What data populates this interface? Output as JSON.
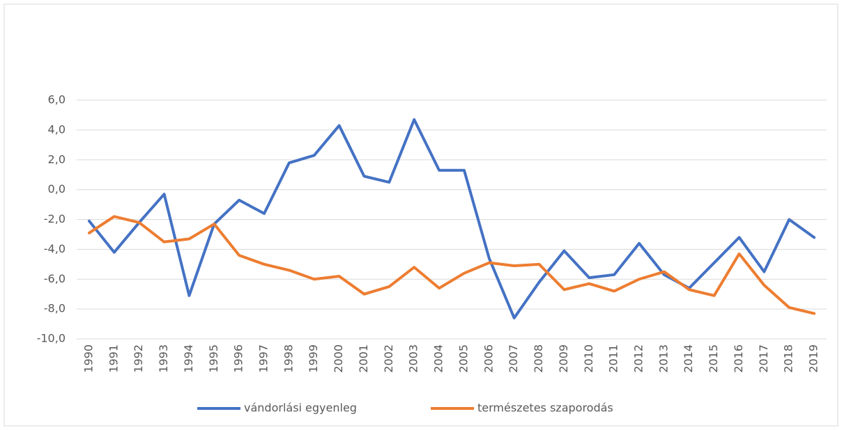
{
  "chart_data": {
    "type": "line",
    "categories": [
      "1990",
      "1991",
      "1992",
      "1993",
      "1994",
      "1995",
      "1996",
      "1997",
      "1998",
      "1999",
      "2000",
      "2001",
      "2002",
      "2003",
      "2004",
      "2005",
      "2006",
      "2007",
      "2008",
      "2009",
      "2010",
      "2011",
      "2012",
      "2013",
      "2014",
      "2015",
      "2016",
      "2017",
      "2018",
      "2019"
    ],
    "series": [
      {
        "name": "vándorlási egyenleg",
        "color": "#4472c4",
        "values": [
          -2.1,
          -4.2,
          -2.2,
          -0.3,
          -7.1,
          -2.3,
          -0.7,
          -1.6,
          1.8,
          2.3,
          4.3,
          0.9,
          0.5,
          4.7,
          1.3,
          1.3,
          -4.6,
          -8.6,
          -6.2,
          -4.1,
          -5.9,
          -5.7,
          -3.6,
          -5.7,
          -6.6,
          -4.9,
          -3.2,
          -5.5,
          -2.0,
          -3.2
        ]
      },
      {
        "name": "természetes szaporodás",
        "color": "#ed7d31",
        "values": [
          -2.9,
          -1.8,
          -2.2,
          -3.5,
          -3.3,
          -2.3,
          -4.4,
          -5.0,
          -5.4,
          -6.0,
          -5.8,
          -7.0,
          -6.5,
          -5.2,
          -6.6,
          -5.6,
          -4.9,
          -5.1,
          -5.0,
          -6.7,
          -6.3,
          -6.8,
          -6.0,
          -5.5,
          -6.7,
          -7.1,
          -4.3,
          -6.4,
          -7.9,
          -8.3
        ]
      }
    ],
    "ylim": [
      -10,
      6
    ],
    "yticks": [
      {
        "value": -10,
        "label": "-10,0"
      },
      {
        "value": -8,
        "label": "-8,0"
      },
      {
        "value": -6,
        "label": "-6,0"
      },
      {
        "value": -4,
        "label": "-4,0"
      },
      {
        "value": -2,
        "label": "-2,0"
      },
      {
        "value": 0,
        "label": "0,0"
      },
      {
        "value": 2,
        "label": "2,0"
      },
      {
        "value": 4,
        "label": "4,0"
      },
      {
        "value": 6,
        "label": "6,0"
      }
    ],
    "grid": true,
    "legend": "bottom"
  }
}
